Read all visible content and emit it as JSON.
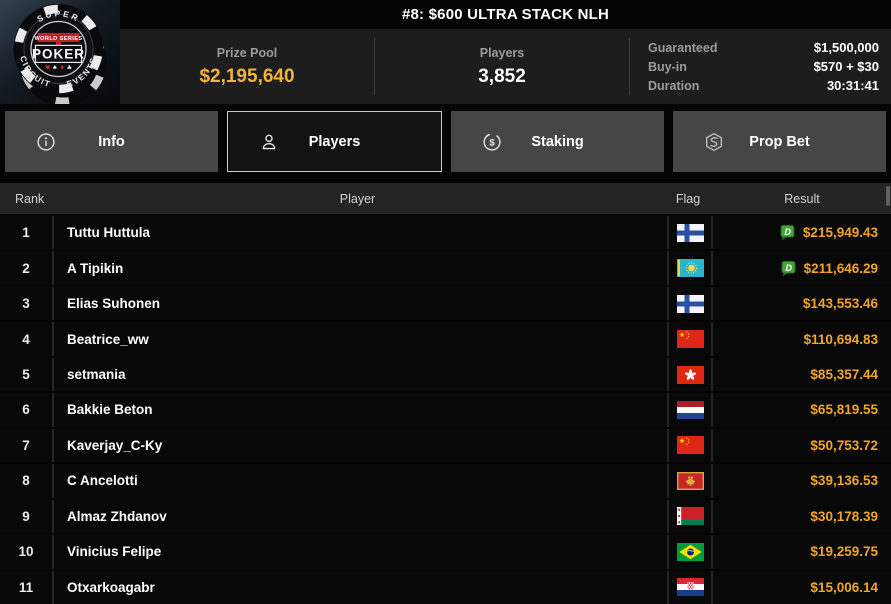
{
  "header": {
    "title": "#8: $600 ULTRA STACK NLH",
    "logo": {
      "top": "SUPER",
      "series": "WORLD SERIES",
      "main": "POKER",
      "suits": "♥ ♠ ♦ ♣",
      "left": "CIRCUIT",
      "right": "EVENTS"
    },
    "stats": [
      {
        "label": "Prize Pool",
        "value": "$2,195,640"
      },
      {
        "label": "Players",
        "value": "3,852"
      }
    ],
    "details": [
      {
        "label": "Guaranteed",
        "value": "$1,500,000"
      },
      {
        "label": "Buy-in",
        "value": "$570 + $30"
      },
      {
        "label": "Duration",
        "value": "30:31:41"
      }
    ]
  },
  "tabs": [
    {
      "label": "Info",
      "icon": "info-icon",
      "active": false
    },
    {
      "label": "Players",
      "icon": "person-icon",
      "active": true
    },
    {
      "label": "Staking",
      "icon": "dollar-circle-icon",
      "active": false
    },
    {
      "label": "Prop Bet",
      "icon": "hexagon-bolt-icon",
      "active": false
    }
  ],
  "table": {
    "columns": [
      "Rank",
      "Player",
      "Flag",
      "Result"
    ],
    "rows": [
      {
        "rank": "1",
        "player": "Tuttu Huttula",
        "flag": "fi",
        "flag_name": "Finland",
        "result": "$215,949.43",
        "dollar_badge": true
      },
      {
        "rank": "2",
        "player": "A Tipikin",
        "flag": "kz",
        "flag_name": "Kazakhstan",
        "result": "$211,646.29",
        "dollar_badge": true
      },
      {
        "rank": "3",
        "player": "Elias Suhonen",
        "flag": "fi",
        "flag_name": "Finland",
        "result": "$143,553.46",
        "dollar_badge": false
      },
      {
        "rank": "4",
        "player": "Beatrice_ww",
        "flag": "cn",
        "flag_name": "China",
        "result": "$110,694.83",
        "dollar_badge": false
      },
      {
        "rank": "5",
        "player": "setmania",
        "flag": "hk",
        "flag_name": "Hong Kong",
        "result": "$85,357.44",
        "dollar_badge": false
      },
      {
        "rank": "6",
        "player": "Bakkie Beton",
        "flag": "nl",
        "flag_name": "Netherlands",
        "result": "$65,819.55",
        "dollar_badge": false
      },
      {
        "rank": "7",
        "player": "Kaverjay_C-Ky",
        "flag": "cn",
        "flag_name": "China",
        "result": "$50,753.72",
        "dollar_badge": false
      },
      {
        "rank": "8",
        "player": "C Ancelotti",
        "flag": "me",
        "flag_name": "Montenegro",
        "result": "$39,136.53",
        "dollar_badge": false
      },
      {
        "rank": "9",
        "player": "Almaz Zhdanov",
        "flag": "by",
        "flag_name": "Belarus",
        "result": "$30,178.39",
        "dollar_badge": false
      },
      {
        "rank": "10",
        "player": "Vinicius Felipe",
        "flag": "br",
        "flag_name": "Brazil",
        "result": "$19,259.75",
        "dollar_badge": false
      },
      {
        "rank": "11",
        "player": "Otxarkoagabr",
        "flag": "hr",
        "flag_name": "Croatia",
        "result": "$15,006.14",
        "dollar_badge": false
      }
    ]
  },
  "colors": {
    "accent_gold": "#f2a625",
    "prize_gold": "#f3b43d",
    "badge_green": "#43a338",
    "tab_inactive": "#464646",
    "tab_active_bg": "#131313",
    "tab_active_border": "#c9c9c9",
    "panel_bg": "#1d1d1d",
    "table_header_bg": "#242424"
  }
}
